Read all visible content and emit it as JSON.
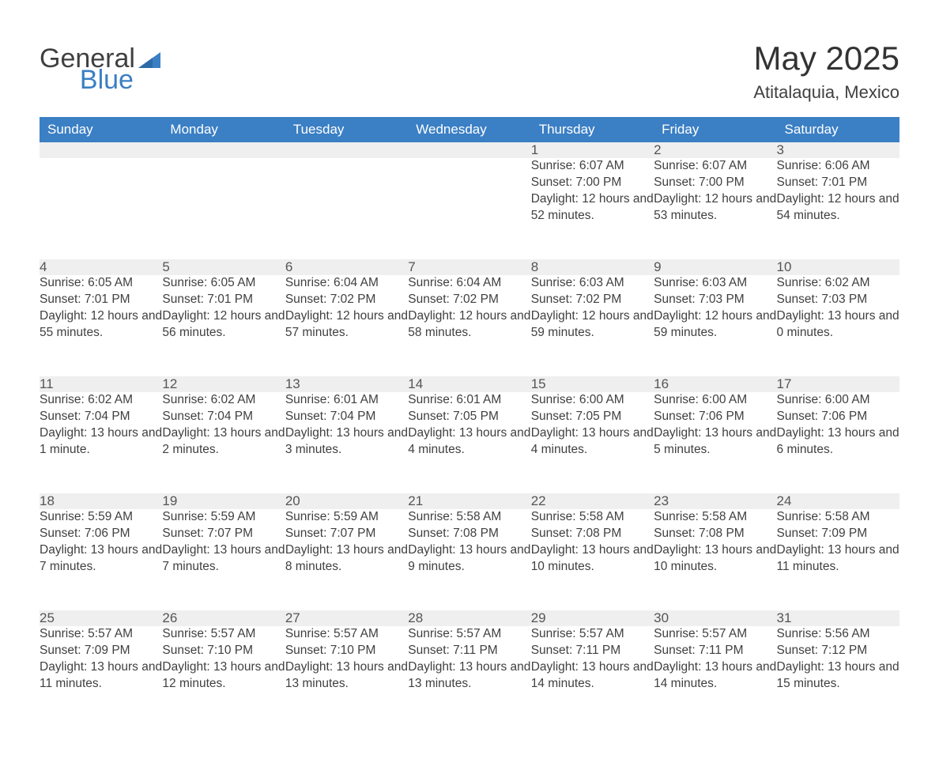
{
  "brand": {
    "word1": "General",
    "word2": "Blue",
    "logo_color": "#3b7fc4"
  },
  "title": "May 2025",
  "location": "Atitalaquia, Mexico",
  "colors": {
    "header_bg": "#3b7fc4",
    "header_text": "#ffffff",
    "daynum_bg": "#efefef",
    "row_border": "#3b7fc4",
    "body_text": "#404040",
    "page_bg": "#ffffff"
  },
  "typography": {
    "title_fontsize": 42,
    "subtitle_fontsize": 22,
    "header_fontsize": 17,
    "cell_fontsize": 15.5,
    "font_family": "Arial, Helvetica, sans-serif"
  },
  "layout": {
    "columns": 7,
    "rows": 5,
    "col_width_pct": 14.2857
  },
  "weekdays": [
    "Sunday",
    "Monday",
    "Tuesday",
    "Wednesday",
    "Thursday",
    "Friday",
    "Saturday"
  ],
  "labels": {
    "sunrise": "Sunrise:",
    "sunset": "Sunset:",
    "daylight": "Daylight:"
  },
  "weeks": [
    [
      null,
      null,
      null,
      null,
      {
        "n": "1",
        "sunrise": "6:07 AM",
        "sunset": "7:00 PM",
        "daylight": "12 hours and 52 minutes."
      },
      {
        "n": "2",
        "sunrise": "6:07 AM",
        "sunset": "7:00 PM",
        "daylight": "12 hours and 53 minutes."
      },
      {
        "n": "3",
        "sunrise": "6:06 AM",
        "sunset": "7:01 PM",
        "daylight": "12 hours and 54 minutes."
      }
    ],
    [
      {
        "n": "4",
        "sunrise": "6:05 AM",
        "sunset": "7:01 PM",
        "daylight": "12 hours and 55 minutes."
      },
      {
        "n": "5",
        "sunrise": "6:05 AM",
        "sunset": "7:01 PM",
        "daylight": "12 hours and 56 minutes."
      },
      {
        "n": "6",
        "sunrise": "6:04 AM",
        "sunset": "7:02 PM",
        "daylight": "12 hours and 57 minutes."
      },
      {
        "n": "7",
        "sunrise": "6:04 AM",
        "sunset": "7:02 PM",
        "daylight": "12 hours and 58 minutes."
      },
      {
        "n": "8",
        "sunrise": "6:03 AM",
        "sunset": "7:02 PM",
        "daylight": "12 hours and 59 minutes."
      },
      {
        "n": "9",
        "sunrise": "6:03 AM",
        "sunset": "7:03 PM",
        "daylight": "12 hours and 59 minutes."
      },
      {
        "n": "10",
        "sunrise": "6:02 AM",
        "sunset": "7:03 PM",
        "daylight": "13 hours and 0 minutes."
      }
    ],
    [
      {
        "n": "11",
        "sunrise": "6:02 AM",
        "sunset": "7:04 PM",
        "daylight": "13 hours and 1 minute."
      },
      {
        "n": "12",
        "sunrise": "6:02 AM",
        "sunset": "7:04 PM",
        "daylight": "13 hours and 2 minutes."
      },
      {
        "n": "13",
        "sunrise": "6:01 AM",
        "sunset": "7:04 PM",
        "daylight": "13 hours and 3 minutes."
      },
      {
        "n": "14",
        "sunrise": "6:01 AM",
        "sunset": "7:05 PM",
        "daylight": "13 hours and 4 minutes."
      },
      {
        "n": "15",
        "sunrise": "6:00 AM",
        "sunset": "7:05 PM",
        "daylight": "13 hours and 4 minutes."
      },
      {
        "n": "16",
        "sunrise": "6:00 AM",
        "sunset": "7:06 PM",
        "daylight": "13 hours and 5 minutes."
      },
      {
        "n": "17",
        "sunrise": "6:00 AM",
        "sunset": "7:06 PM",
        "daylight": "13 hours and 6 minutes."
      }
    ],
    [
      {
        "n": "18",
        "sunrise": "5:59 AM",
        "sunset": "7:06 PM",
        "daylight": "13 hours and 7 minutes."
      },
      {
        "n": "19",
        "sunrise": "5:59 AM",
        "sunset": "7:07 PM",
        "daylight": "13 hours and 7 minutes."
      },
      {
        "n": "20",
        "sunrise": "5:59 AM",
        "sunset": "7:07 PM",
        "daylight": "13 hours and 8 minutes."
      },
      {
        "n": "21",
        "sunrise": "5:58 AM",
        "sunset": "7:08 PM",
        "daylight": "13 hours and 9 minutes."
      },
      {
        "n": "22",
        "sunrise": "5:58 AM",
        "sunset": "7:08 PM",
        "daylight": "13 hours and 10 minutes."
      },
      {
        "n": "23",
        "sunrise": "5:58 AM",
        "sunset": "7:08 PM",
        "daylight": "13 hours and 10 minutes."
      },
      {
        "n": "24",
        "sunrise": "5:58 AM",
        "sunset": "7:09 PM",
        "daylight": "13 hours and 11 minutes."
      }
    ],
    [
      {
        "n": "25",
        "sunrise": "5:57 AM",
        "sunset": "7:09 PM",
        "daylight": "13 hours and 11 minutes."
      },
      {
        "n": "26",
        "sunrise": "5:57 AM",
        "sunset": "7:10 PM",
        "daylight": "13 hours and 12 minutes."
      },
      {
        "n": "27",
        "sunrise": "5:57 AM",
        "sunset": "7:10 PM",
        "daylight": "13 hours and 13 minutes."
      },
      {
        "n": "28",
        "sunrise": "5:57 AM",
        "sunset": "7:11 PM",
        "daylight": "13 hours and 13 minutes."
      },
      {
        "n": "29",
        "sunrise": "5:57 AM",
        "sunset": "7:11 PM",
        "daylight": "13 hours and 14 minutes."
      },
      {
        "n": "30",
        "sunrise": "5:57 AM",
        "sunset": "7:11 PM",
        "daylight": "13 hours and 14 minutes."
      },
      {
        "n": "31",
        "sunrise": "5:56 AM",
        "sunset": "7:12 PM",
        "daylight": "13 hours and 15 minutes."
      }
    ]
  ]
}
